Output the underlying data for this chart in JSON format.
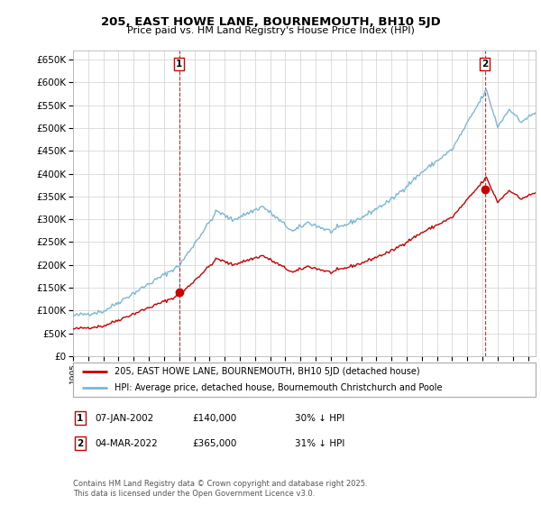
{
  "title": "205, EAST HOWE LANE, BOURNEMOUTH, BH10 5JD",
  "subtitle": "Price paid vs. HM Land Registry's House Price Index (HPI)",
  "legend_line1": "205, EAST HOWE LANE, BOURNEMOUTH, BH10 5JD (detached house)",
  "legend_line2": "HPI: Average price, detached house, Bournemouth Christchurch and Poole",
  "sale1_date": "07-JAN-2002",
  "sale1_price": 140000,
  "sale1_note": "30% ↓ HPI",
  "sale2_date": "04-MAR-2022",
  "sale2_price": 365000,
  "sale2_note": "31% ↓ HPI",
  "footnote": "Contains HM Land Registry data © Crown copyright and database right 2025.\nThis data is licensed under the Open Government Licence v3.0.",
  "ylim_min": 0,
  "ylim_max": 670000,
  "hpi_color": "#7ab8d9",
  "price_color": "#cc0000",
  "grid_color": "#d0d0d0",
  "bg_color": "#ffffff",
  "vline_color": "#cc0000"
}
